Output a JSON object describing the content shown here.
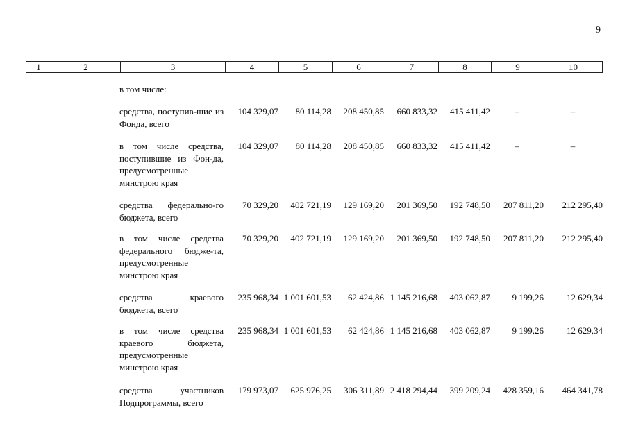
{
  "page_number": "9",
  "header_columns": [
    "1",
    "2",
    "3",
    "4",
    "5",
    "6",
    "7",
    "8",
    "9",
    "10"
  ],
  "intro": "в том числе:",
  "rows": [
    {
      "label": "средства, поступив-шие из Фонда, всего",
      "values": [
        "104 329,07",
        "80 114,28",
        "208 450,85",
        "660 833,32",
        "415 411,42",
        "–",
        "–"
      ]
    },
    {
      "label": "в том числе средства, поступившие из Фон-да, предусмотренные минстрою края",
      "values": [
        "104 329,07",
        "80 114,28",
        "208 450,85",
        "660 833,32",
        "415 411,42",
        "–",
        "–"
      ]
    },
    {
      "label": "средства федерально-го бюджета, всего",
      "values": [
        "70 329,20",
        "402 721,19",
        "129 169,20",
        "201 369,50",
        "192 748,50",
        "207 811,20",
        "212 295,40"
      ]
    },
    {
      "label": "в том числе средства федерального бюдже-та, предусмотренные минстрою края",
      "values": [
        "70 329,20",
        "402 721,19",
        "129 169,20",
        "201 369,50",
        "192 748,50",
        "207 811,20",
        "212 295,40"
      ]
    },
    {
      "label": "средства краевого бюджета, всего",
      "values": [
        "235 968,34",
        "1 001 601,53",
        "62 424,86",
        "1 145 216,68",
        "403 062,87",
        "9 199,26",
        "12 629,34"
      ]
    },
    {
      "label": "в том числе средства краевого бюджета, предусмотренные минстрою края",
      "values": [
        "235 968,34",
        "1 001 601,53",
        "62 424,86",
        "1 145 216,68",
        "403 062,87",
        "9 199,26",
        "12 629,34"
      ]
    },
    {
      "label": "средства участников Подпрограммы, всего",
      "values": [
        "179 973,07",
        "625 976,25",
        "306 311,89",
        "2 418 294,44",
        "399 209,24",
        "428 359,16",
        "464 341,78"
      ]
    }
  ]
}
